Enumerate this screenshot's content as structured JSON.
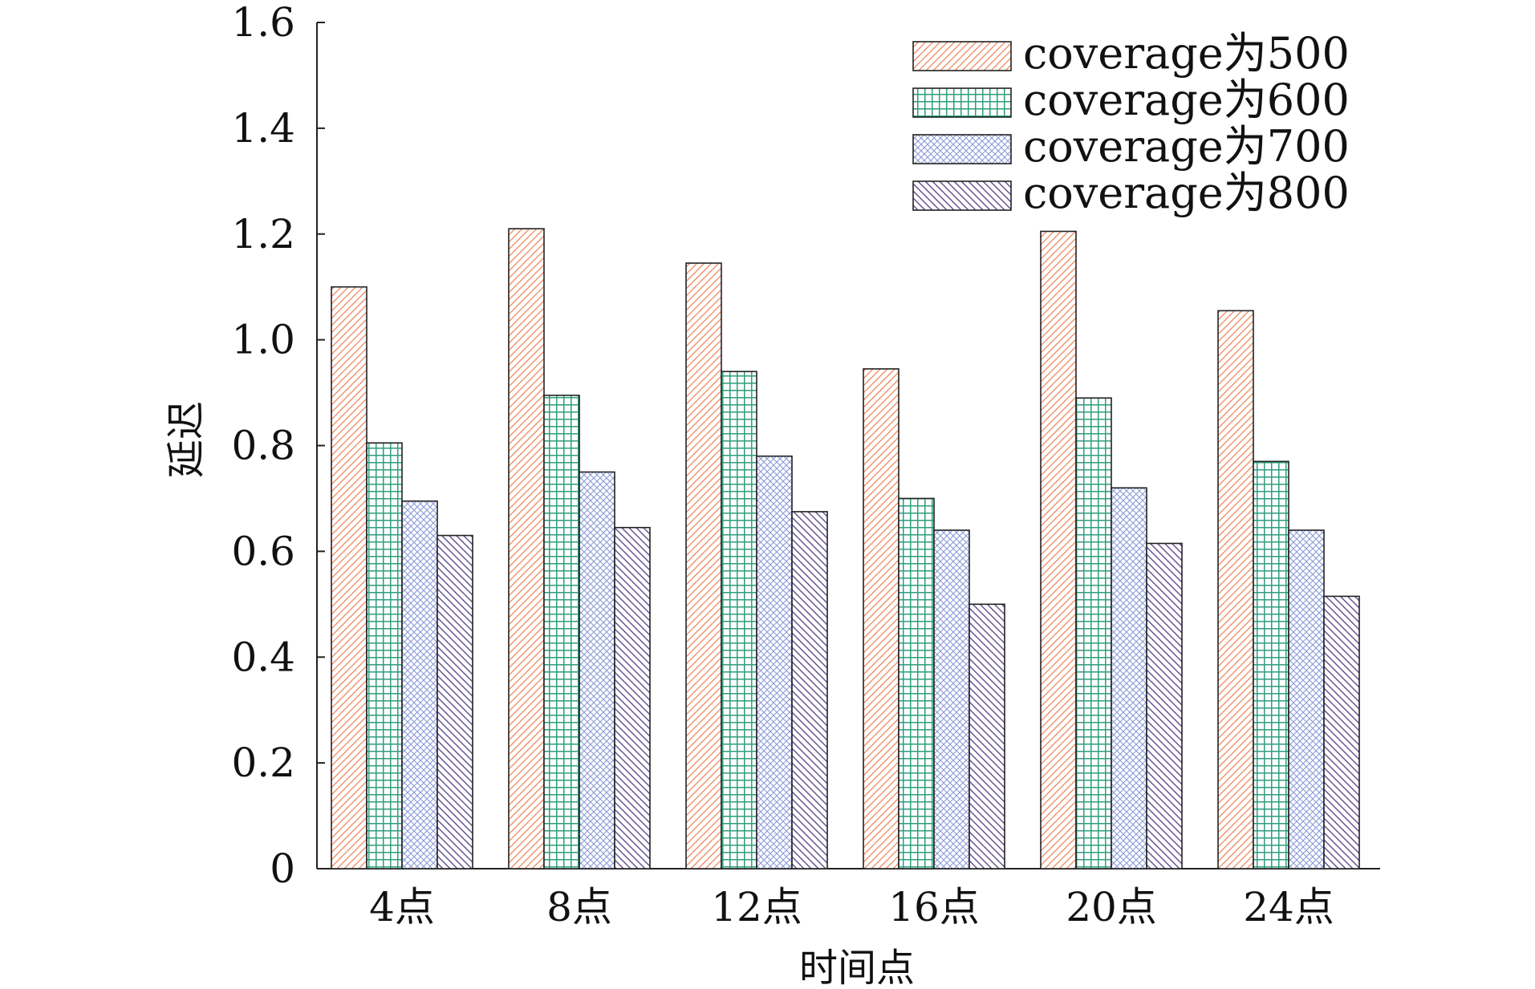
{
  "chart_data": {
    "type": "bar",
    "title": "",
    "xlabel": "时间点",
    "ylabel": "延迟",
    "ylim": [
      0,
      1.6
    ],
    "yticks": [
      "0",
      "0.2",
      "0.4",
      "0.6",
      "0.8",
      "1.0",
      "1.2",
      "1.4",
      "1.6"
    ],
    "categories": [
      "4点",
      "8点",
      "12点",
      "16点",
      "20点",
      "24点"
    ],
    "legend_position": "top-right",
    "grid": false,
    "series": [
      {
        "name": "coverage为500",
        "color": "#f0906a",
        "pattern": "diagonal-hatch",
        "values": [
          1.1,
          1.21,
          1.145,
          0.945,
          1.205,
          1.055
        ]
      },
      {
        "name": "coverage为600",
        "color": "#2e9e7c",
        "pattern": "grid",
        "values": [
          0.805,
          0.895,
          0.94,
          0.7,
          0.89,
          0.77
        ]
      },
      {
        "name": "coverage为700",
        "color": "#8a9ad8",
        "pattern": "crosshatch",
        "values": [
          0.695,
          0.75,
          0.78,
          0.64,
          0.72,
          0.64
        ]
      },
      {
        "name": "coverage为800",
        "color": "#5e4a8c",
        "pattern": "back-diagonal-hatch",
        "values": [
          0.63,
          0.645,
          0.675,
          0.5,
          0.615,
          0.515
        ]
      }
    ]
  }
}
